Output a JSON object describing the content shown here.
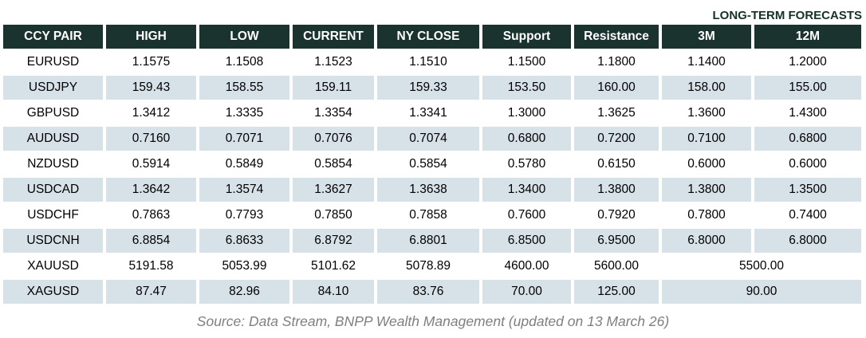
{
  "colors": {
    "header_bg": "#1a332e",
    "alt_row_bg": "#d7e1e8",
    "header_text": "#ffffff",
    "source_text": "#7f7f7f",
    "label_text": "#16302b"
  },
  "forecast_label": "LONG-TERM FORECASTS",
  "table": {
    "columns": [
      "CCY PAIR",
      "HIGH",
      "LOW",
      "CURRENT",
      "NY CLOSE",
      "Support",
      "Resistance",
      "3M",
      "12M"
    ],
    "rows": [
      {
        "pair": "EURUSD",
        "values": [
          "1.1575",
          "1.1508",
          "1.1523",
          "1.1510",
          "1.1500",
          "1.1800",
          "1.1400",
          "1.2000"
        ]
      },
      {
        "pair": "USDJPY",
        "values": [
          "159.43",
          "158.55",
          "159.11",
          "159.33",
          "153.50",
          "160.00",
          "158.00",
          "155.00"
        ]
      },
      {
        "pair": "GBPUSD",
        "values": [
          "1.3412",
          "1.3335",
          "1.3354",
          "1.3341",
          "1.3000",
          "1.3625",
          "1.3600",
          "1.4300"
        ]
      },
      {
        "pair": "AUDUSD",
        "values": [
          "0.7160",
          "0.7071",
          "0.7076",
          "0.7074",
          "0.6800",
          "0.7200",
          "0.7100",
          "0.6800"
        ]
      },
      {
        "pair": "NZDUSD",
        "values": [
          "0.5914",
          "0.5849",
          "0.5854",
          "0.5854",
          "0.5780",
          "0.6150",
          "0.6000",
          "0.6000"
        ]
      },
      {
        "pair": "USDCAD",
        "values": [
          "1.3642",
          "1.3574",
          "1.3627",
          "1.3638",
          "1.3400",
          "1.3800",
          "1.3800",
          "1.3500"
        ]
      },
      {
        "pair": "USDCHF",
        "values": [
          "0.7863",
          "0.7793",
          "0.7850",
          "0.7858",
          "0.7600",
          "0.7920",
          "0.7800",
          "0.7400"
        ]
      },
      {
        "pair": "USDCNH",
        "values": [
          "6.8854",
          "6.8633",
          "6.8792",
          "6.8801",
          "6.8500",
          "6.9500",
          "6.8000",
          "6.8000"
        ]
      },
      {
        "pair": "XAUUSD",
        "values": [
          "5191.58",
          "5053.99",
          "5101.62",
          "5078.89",
          "4600.00",
          "5600.00"
        ],
        "long_term_forecast": "5500.00"
      },
      {
        "pair": "XAGUSD",
        "values": [
          "87.47",
          "82.96",
          "84.10",
          "83.76",
          "70.00",
          "125.00"
        ],
        "long_term_forecast": "90.00"
      }
    ]
  },
  "footer": {
    "source_text": "Source: Data Stream, BNPP Wealth Management (updated on 13 March 26)"
  }
}
